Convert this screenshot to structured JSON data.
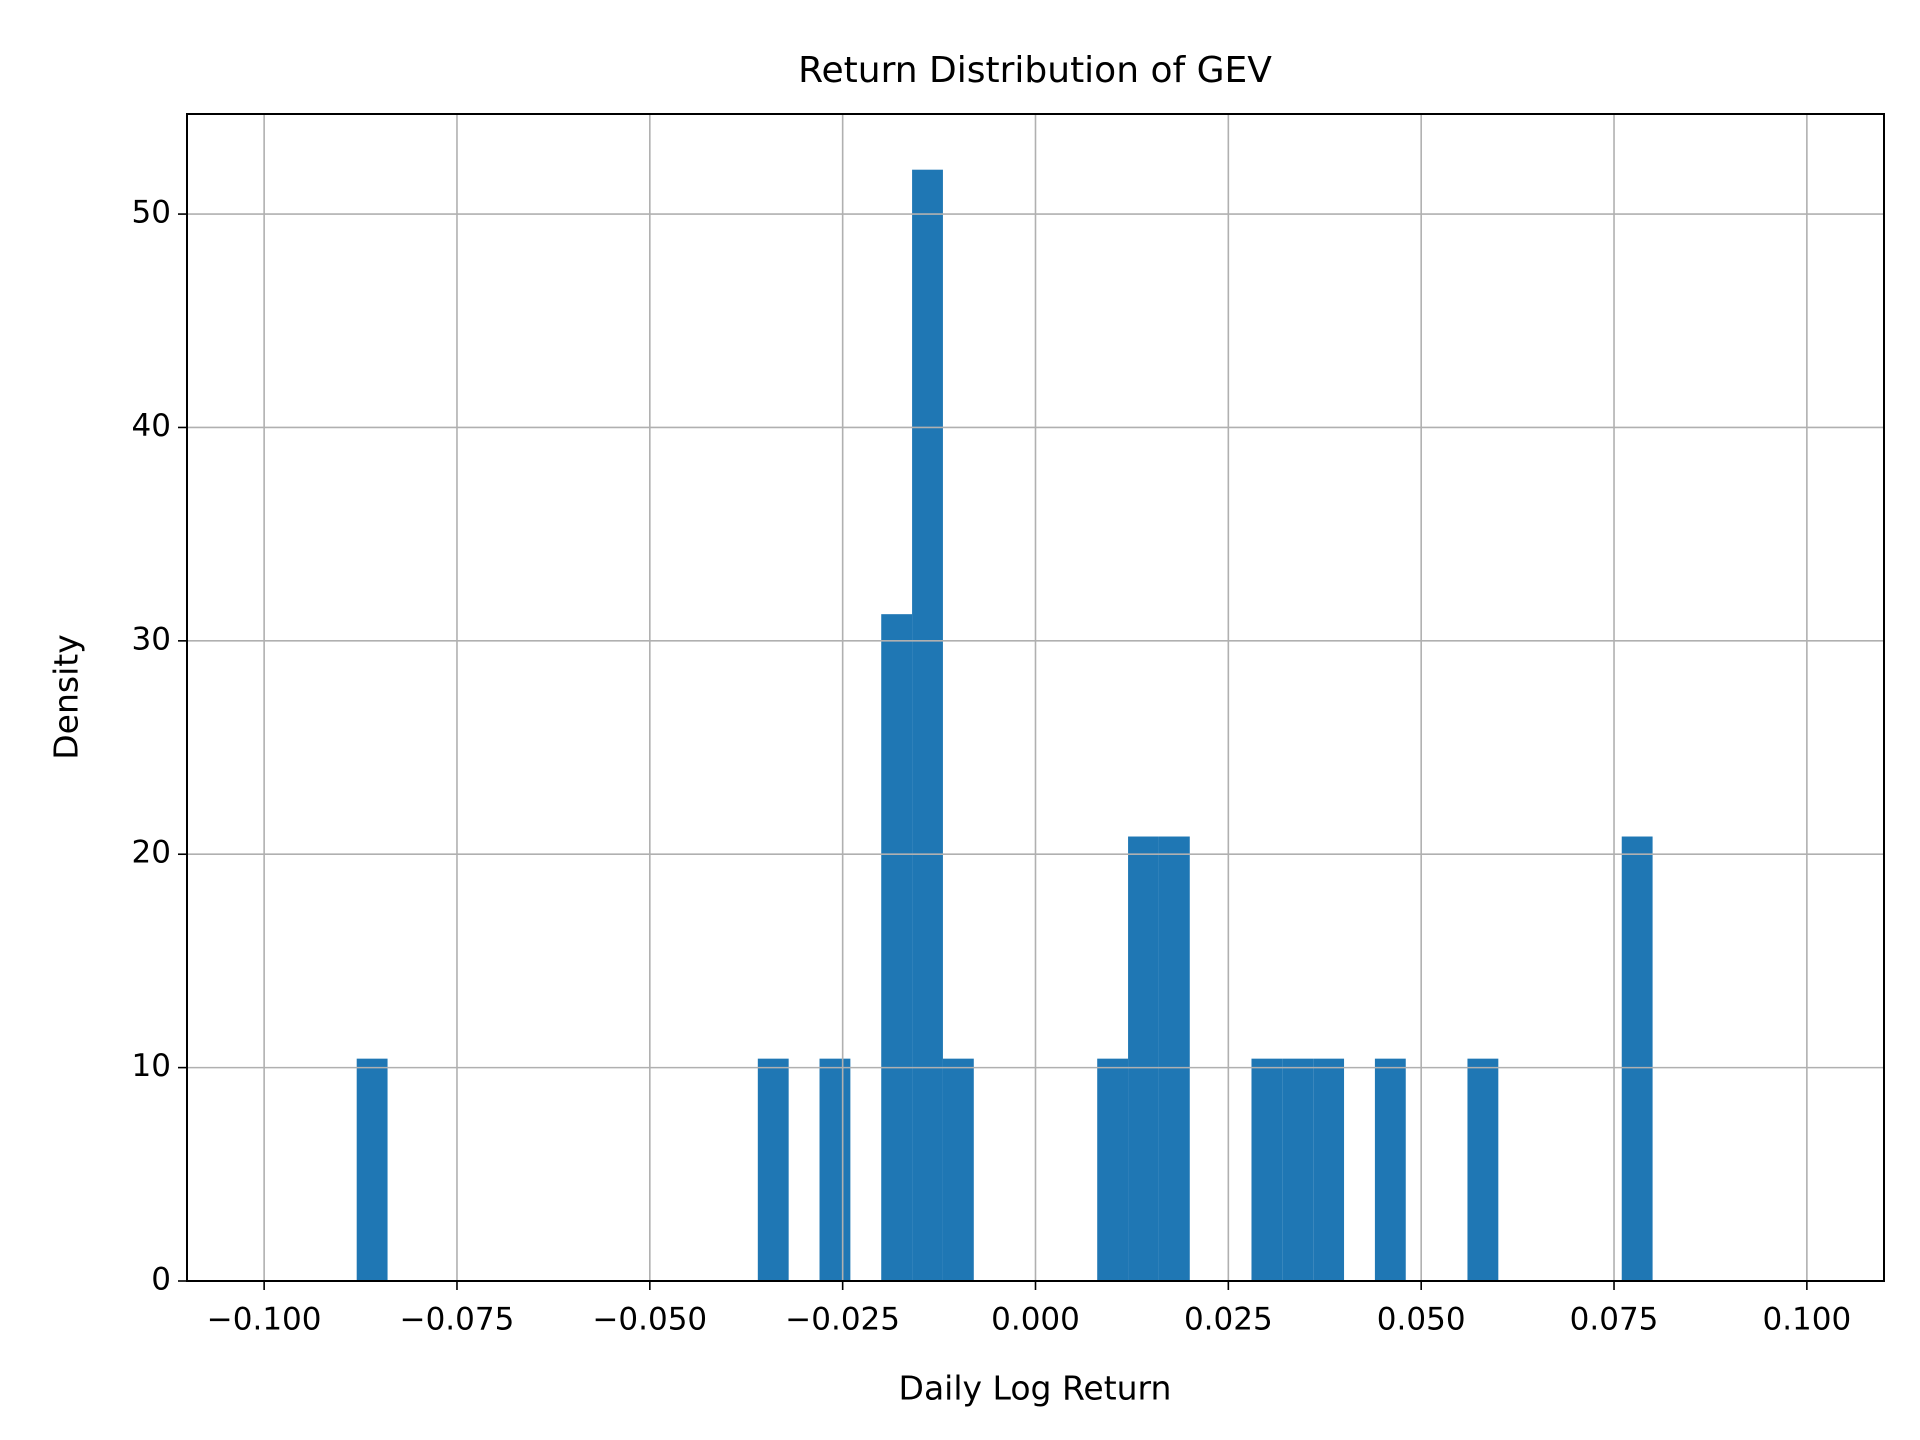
{
  "chart_data": {
    "type": "histogram",
    "title": "Return Distribution of GEV",
    "x_label": "Daily Log Return",
    "y_label": "Density",
    "bins": [
      -0.1,
      -0.096,
      -0.092,
      -0.088,
      -0.084,
      -0.08,
      -0.076,
      -0.072,
      -0.068,
      -0.064,
      -0.06,
      -0.056,
      -0.052,
      -0.048,
      -0.044,
      -0.04,
      -0.036,
      -0.032,
      -0.028,
      -0.024,
      -0.02,
      -0.016,
      -0.012,
      -0.008,
      -0.004,
      0,
      0.004,
      0.008,
      0.012,
      0.016,
      0.02,
      0.024,
      0.028,
      0.032,
      0.036,
      0.04,
      0.044,
      0.048,
      0.052,
      0.056,
      0.06,
      0.064,
      0.068,
      0.072,
      0.076,
      0.08,
      0.084,
      0.088,
      0.092,
      0.096,
      0.1
    ],
    "values": [
      0,
      0,
      0,
      10.42,
      0,
      0,
      0,
      0,
      0,
      0,
      0,
      0,
      0,
      0,
      0,
      0,
      10.42,
      0,
      10.42,
      0,
      31.25,
      52.08,
      10.42,
      0,
      0,
      0,
      0,
      10.42,
      20.83,
      20.83,
      0,
      0,
      10.42,
      10.42,
      10.42,
      0,
      10.42,
      0,
      0,
      10.42,
      0,
      0,
      0,
      0,
      20.83,
      0,
      0,
      0,
      0,
      0
    ],
    "color": "#1f77b4",
    "xlim": [
      -0.11,
      0.11
    ],
    "xticks": [
      {
        "value": -0.1,
        "label": "−0.100"
      },
      {
        "value": -0.075,
        "label": "−0.075"
      },
      {
        "value": -0.05,
        "label": "−0.050"
      },
      {
        "value": -0.025,
        "label": "−0.025"
      },
      {
        "value": 0,
        "label": "0.000"
      },
      {
        "value": 0.025,
        "label": "0.025"
      },
      {
        "value": 0.05,
        "label": "0.050"
      },
      {
        "value": 0.075,
        "label": "0.075"
      },
      {
        "value": 0.1,
        "label": "0.100"
      }
    ],
    "ylim": [
      0,
      54.69
    ],
    "yticks": [
      0,
      10,
      20,
      30,
      40,
      50
    ],
    "grid": true
  }
}
